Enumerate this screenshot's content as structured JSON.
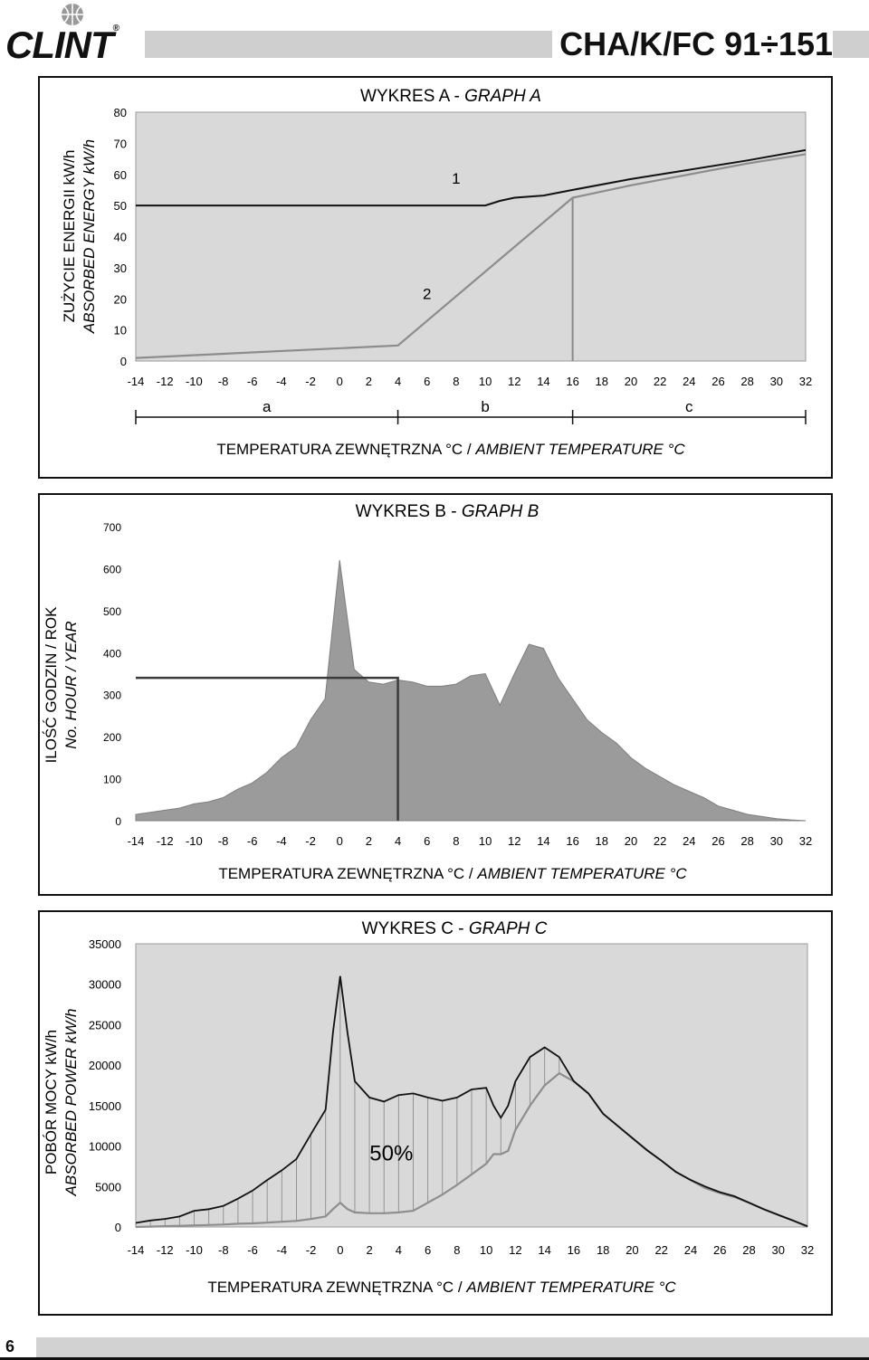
{
  "header": {
    "brand": "CLINT",
    "registered_mark": "®",
    "model": "CHA/K/FC  91÷151"
  },
  "page_number": "6",
  "chart_data": [
    {
      "type": "line",
      "title_prefix": "WYKRES A - ",
      "title_italic": "GRAPH A",
      "ylabel_line1": "ZUŻYCIE ENERGII kW/h",
      "ylabel_line2": "ABSORBED ENERGY kW/h",
      "xlabel_prefix": "TEMPERATURA ZEWNĘTRZNA °C / ",
      "xlabel_italic": "AMBIENT TEMPERATURE °C",
      "xlim": [
        -14,
        32
      ],
      "ylim": [
        0,
        80
      ],
      "xticks": [
        -14,
        -12,
        -10,
        -8,
        -6,
        -4,
        -2,
        0,
        2,
        4,
        6,
        8,
        10,
        12,
        14,
        16,
        18,
        20,
        22,
        24,
        26,
        28,
        30,
        32
      ],
      "yticks": [
        0,
        10,
        20,
        30,
        40,
        50,
        60,
        70,
        80
      ],
      "grid": false,
      "series": [
        {
          "name": "1",
          "x": [
            -14,
            10,
            11,
            12,
            14,
            16,
            20,
            24,
            28,
            32
          ],
          "y": [
            50,
            50,
            51.5,
            52.5,
            53.2,
            55,
            58.5,
            61.5,
            64.5,
            67.8
          ]
        },
        {
          "name": "2",
          "x": [
            -14,
            4,
            16,
            16.5,
            20,
            24,
            28,
            32
          ],
          "y": [
            1,
            5,
            52.5,
            53,
            56.5,
            60,
            63.5,
            66.5
          ]
        }
      ],
      "vline_x": 16,
      "zones": {
        "labels": [
          "a",
          "b",
          "c"
        ],
        "boundaries": [
          -14,
          4,
          16,
          32
        ]
      }
    },
    {
      "type": "area",
      "title_prefix": "WYKRES B - ",
      "title_italic": "GRAPH B",
      "ylabel_line1": "ILOŚĆ GODZIN / ROK",
      "ylabel_line2": "No. HOUR / YEAR",
      "xlabel_prefix": "TEMPERATURA ZEWNĘTRZNA °C / ",
      "xlabel_italic": "AMBIENT TEMPERATURE °C",
      "xlim": [
        -14,
        32
      ],
      "ylim": [
        0,
        700
      ],
      "xticks": [
        -14,
        -12,
        -10,
        -8,
        -6,
        -4,
        -2,
        0,
        2,
        4,
        6,
        8,
        10,
        12,
        14,
        16,
        18,
        20,
        22,
        24,
        26,
        28,
        30,
        32
      ],
      "yticks": [
        0,
        100,
        200,
        300,
        400,
        500,
        600,
        700
      ],
      "ytick_labels": [
        "0",
        "100",
        "200",
        "300",
        "400",
        "500",
        "600",
        "700"
      ],
      "grid": false,
      "x": [
        -14,
        -13,
        -12,
        -11,
        -10,
        -9,
        -8,
        -7,
        -6,
        -5,
        -4,
        -3,
        -2,
        -1,
        0,
        1,
        2,
        3,
        4,
        5,
        6,
        7,
        8,
        9,
        10,
        11,
        12,
        13,
        14,
        15,
        16,
        17,
        18,
        19,
        20,
        21,
        22,
        23,
        24,
        25,
        26,
        27,
        28,
        29,
        30,
        31,
        32
      ],
      "values": [
        15,
        20,
        25,
        30,
        40,
        45,
        55,
        75,
        90,
        115,
        150,
        175,
        240,
        290,
        620,
        360,
        330,
        325,
        335,
        330,
        320,
        320,
        325,
        345,
        350,
        275,
        350,
        420,
        410,
        340,
        290,
        240,
        210,
        185,
        150,
        125,
        105,
        85,
        70,
        55,
        35,
        25,
        15,
        10,
        5,
        2,
        0
      ],
      "marker_line": {
        "x": 4,
        "y": 340
      }
    },
    {
      "type": "line",
      "title_prefix": "WYKRES C - ",
      "title_italic": "GRAPH C",
      "ylabel_line1": "POBÓR MOCY kW/h",
      "ylabel_line2": "ABSORBED POWER kW/h",
      "xlabel_prefix": "TEMPERATURA ZEWNĘTRZNA °C / ",
      "xlabel_italic": "AMBIENT TEMPERATURE °C",
      "xlim": [
        -14,
        32
      ],
      "ylim": [
        0,
        35000
      ],
      "xticks": [
        -14,
        -12,
        -10,
        -8,
        -6,
        -4,
        -2,
        0,
        2,
        4,
        6,
        8,
        10,
        12,
        14,
        16,
        18,
        20,
        22,
        24,
        26,
        28,
        30,
        32
      ],
      "yticks": [
        0,
        5000,
        10000,
        15000,
        20000,
        25000,
        30000,
        35000
      ],
      "grid": false,
      "annotation": "50%",
      "x": [
        -14,
        -13,
        -12,
        -11,
        -10,
        -9,
        -8,
        -7,
        -6,
        -5,
        -4,
        -3,
        -2,
        -1,
        -0.5,
        0,
        0.5,
        1,
        2,
        3,
        4,
        5,
        6,
        7,
        8,
        9,
        10,
        10.5,
        11,
        11.5,
        12,
        13,
        14,
        15,
        16,
        17,
        18,
        19,
        20,
        21,
        22,
        23,
        24,
        25,
        26,
        27,
        28,
        29,
        30,
        31,
        32
      ],
      "series": [
        {
          "name": "1",
          "values": [
            500,
            800,
            1000,
            1300,
            2000,
            2200,
            2600,
            3500,
            4500,
            5800,
            7000,
            8400,
            11500,
            14500,
            24000,
            31000,
            24000,
            18000,
            16000,
            15500,
            16300,
            16500,
            16000,
            15600,
            16000,
            17000,
            17200,
            15000,
            13500,
            15000,
            18000,
            21000,
            22200,
            21000,
            18000,
            16500,
            14000,
            12500,
            11000,
            9500,
            8200,
            6800,
            5800,
            5000,
            4300,
            3800,
            3000,
            2200,
            1500,
            800,
            100
          ]
        },
        {
          "name": "2",
          "values": [
            0,
            50,
            100,
            150,
            200,
            250,
            300,
            400,
            450,
            550,
            650,
            750,
            1000,
            1300,
            2200,
            3000,
            2200,
            1800,
            1700,
            1700,
            1800,
            2000,
            3000,
            4000,
            5200,
            6500,
            7800,
            9000,
            9000,
            9400,
            12000,
            15000,
            17500,
            19000,
            18000,
            16500,
            14000,
            12500,
            11000,
            9500,
            8200,
            6800,
            5800,
            4800,
            4200,
            3700,
            3000,
            2200,
            1500,
            800,
            0
          ]
        }
      ]
    }
  ]
}
